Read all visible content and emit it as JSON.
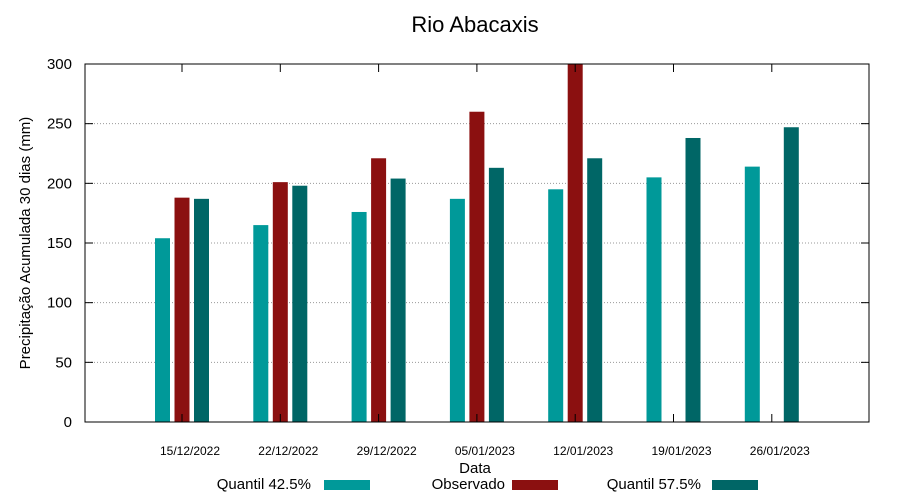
{
  "chart_data": {
    "type": "bar",
    "title": "Rio Abacaxis",
    "xlabel": "Data",
    "ylabel": "Precipitação Acumulada 30 dias (mm)",
    "ylim": [
      0,
      300
    ],
    "yticks": [
      0,
      50,
      100,
      150,
      200,
      250,
      300
    ],
    "grid": true,
    "legend_position": "bottom",
    "categories": [
      "15/12/2022",
      "22/12/2022",
      "29/12/2022",
      "05/01/2023",
      "12/01/2023",
      "19/01/2023",
      "26/01/2023"
    ],
    "series": [
      {
        "name": "Quantil 42.5%",
        "color": "#009999",
        "values": [
          154,
          165,
          176,
          187,
          195,
          205,
          214
        ]
      },
      {
        "name": "Observado",
        "color": "#8b1010",
        "values": [
          188,
          201,
          221,
          260,
          300,
          null,
          null
        ]
      },
      {
        "name": "Quantil 57.5%",
        "color": "#006666",
        "values": [
          187,
          198,
          204,
          213,
          221,
          238,
          247
        ]
      }
    ]
  }
}
